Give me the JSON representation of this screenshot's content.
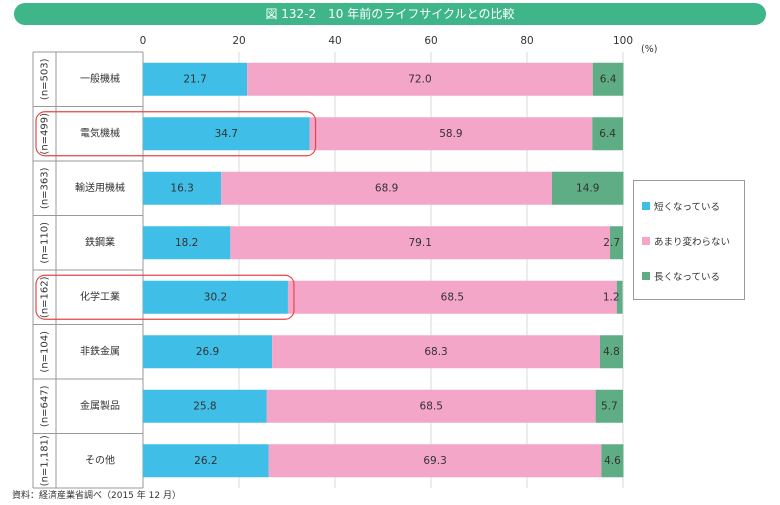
{
  "title": "図 132-2　10 年前のライフサイクルとの比較",
  "source": "資料：経済産業省調べ（2015 年 12 月）",
  "chart_data": {
    "type": "bar",
    "orientation": "horizontal",
    "stacked": true,
    "unit_label": "(%)",
    "xlim": [
      0,
      100
    ],
    "x_ticks": [
      "0",
      "20",
      "40",
      "60",
      "80",
      "100"
    ],
    "categories": [
      "一般機械",
      "電気機械",
      "輸送用機械",
      "鉄鋼業",
      "化学工業",
      "非鉄金属",
      "金属製品",
      "その他"
    ],
    "sample_sizes": [
      "(n=503)",
      "(n=499)",
      "(n=363)",
      "(n=110)",
      "(n=162)",
      "(n=104)",
      "(n=647)",
      "(n=1,181)"
    ],
    "series": [
      {
        "name": "短くなっている",
        "color": "#3fbfe8",
        "values": [
          21.7,
          34.7,
          16.3,
          18.2,
          30.2,
          26.9,
          25.8,
          26.2
        ]
      },
      {
        "name": "あまり変わらない",
        "color": "#f4a6c8",
        "values": [
          72.0,
          58.9,
          68.9,
          79.1,
          68.5,
          68.3,
          68.5,
          69.3
        ]
      },
      {
        "name": "長くなっている",
        "color": "#5fad84",
        "values": [
          6.4,
          6.4,
          14.9,
          2.7,
          1.2,
          4.8,
          5.7,
          4.6
        ]
      }
    ],
    "highlighted": [
      "電気機械",
      "化学工業"
    ],
    "grid": true,
    "legend_position": "right"
  }
}
